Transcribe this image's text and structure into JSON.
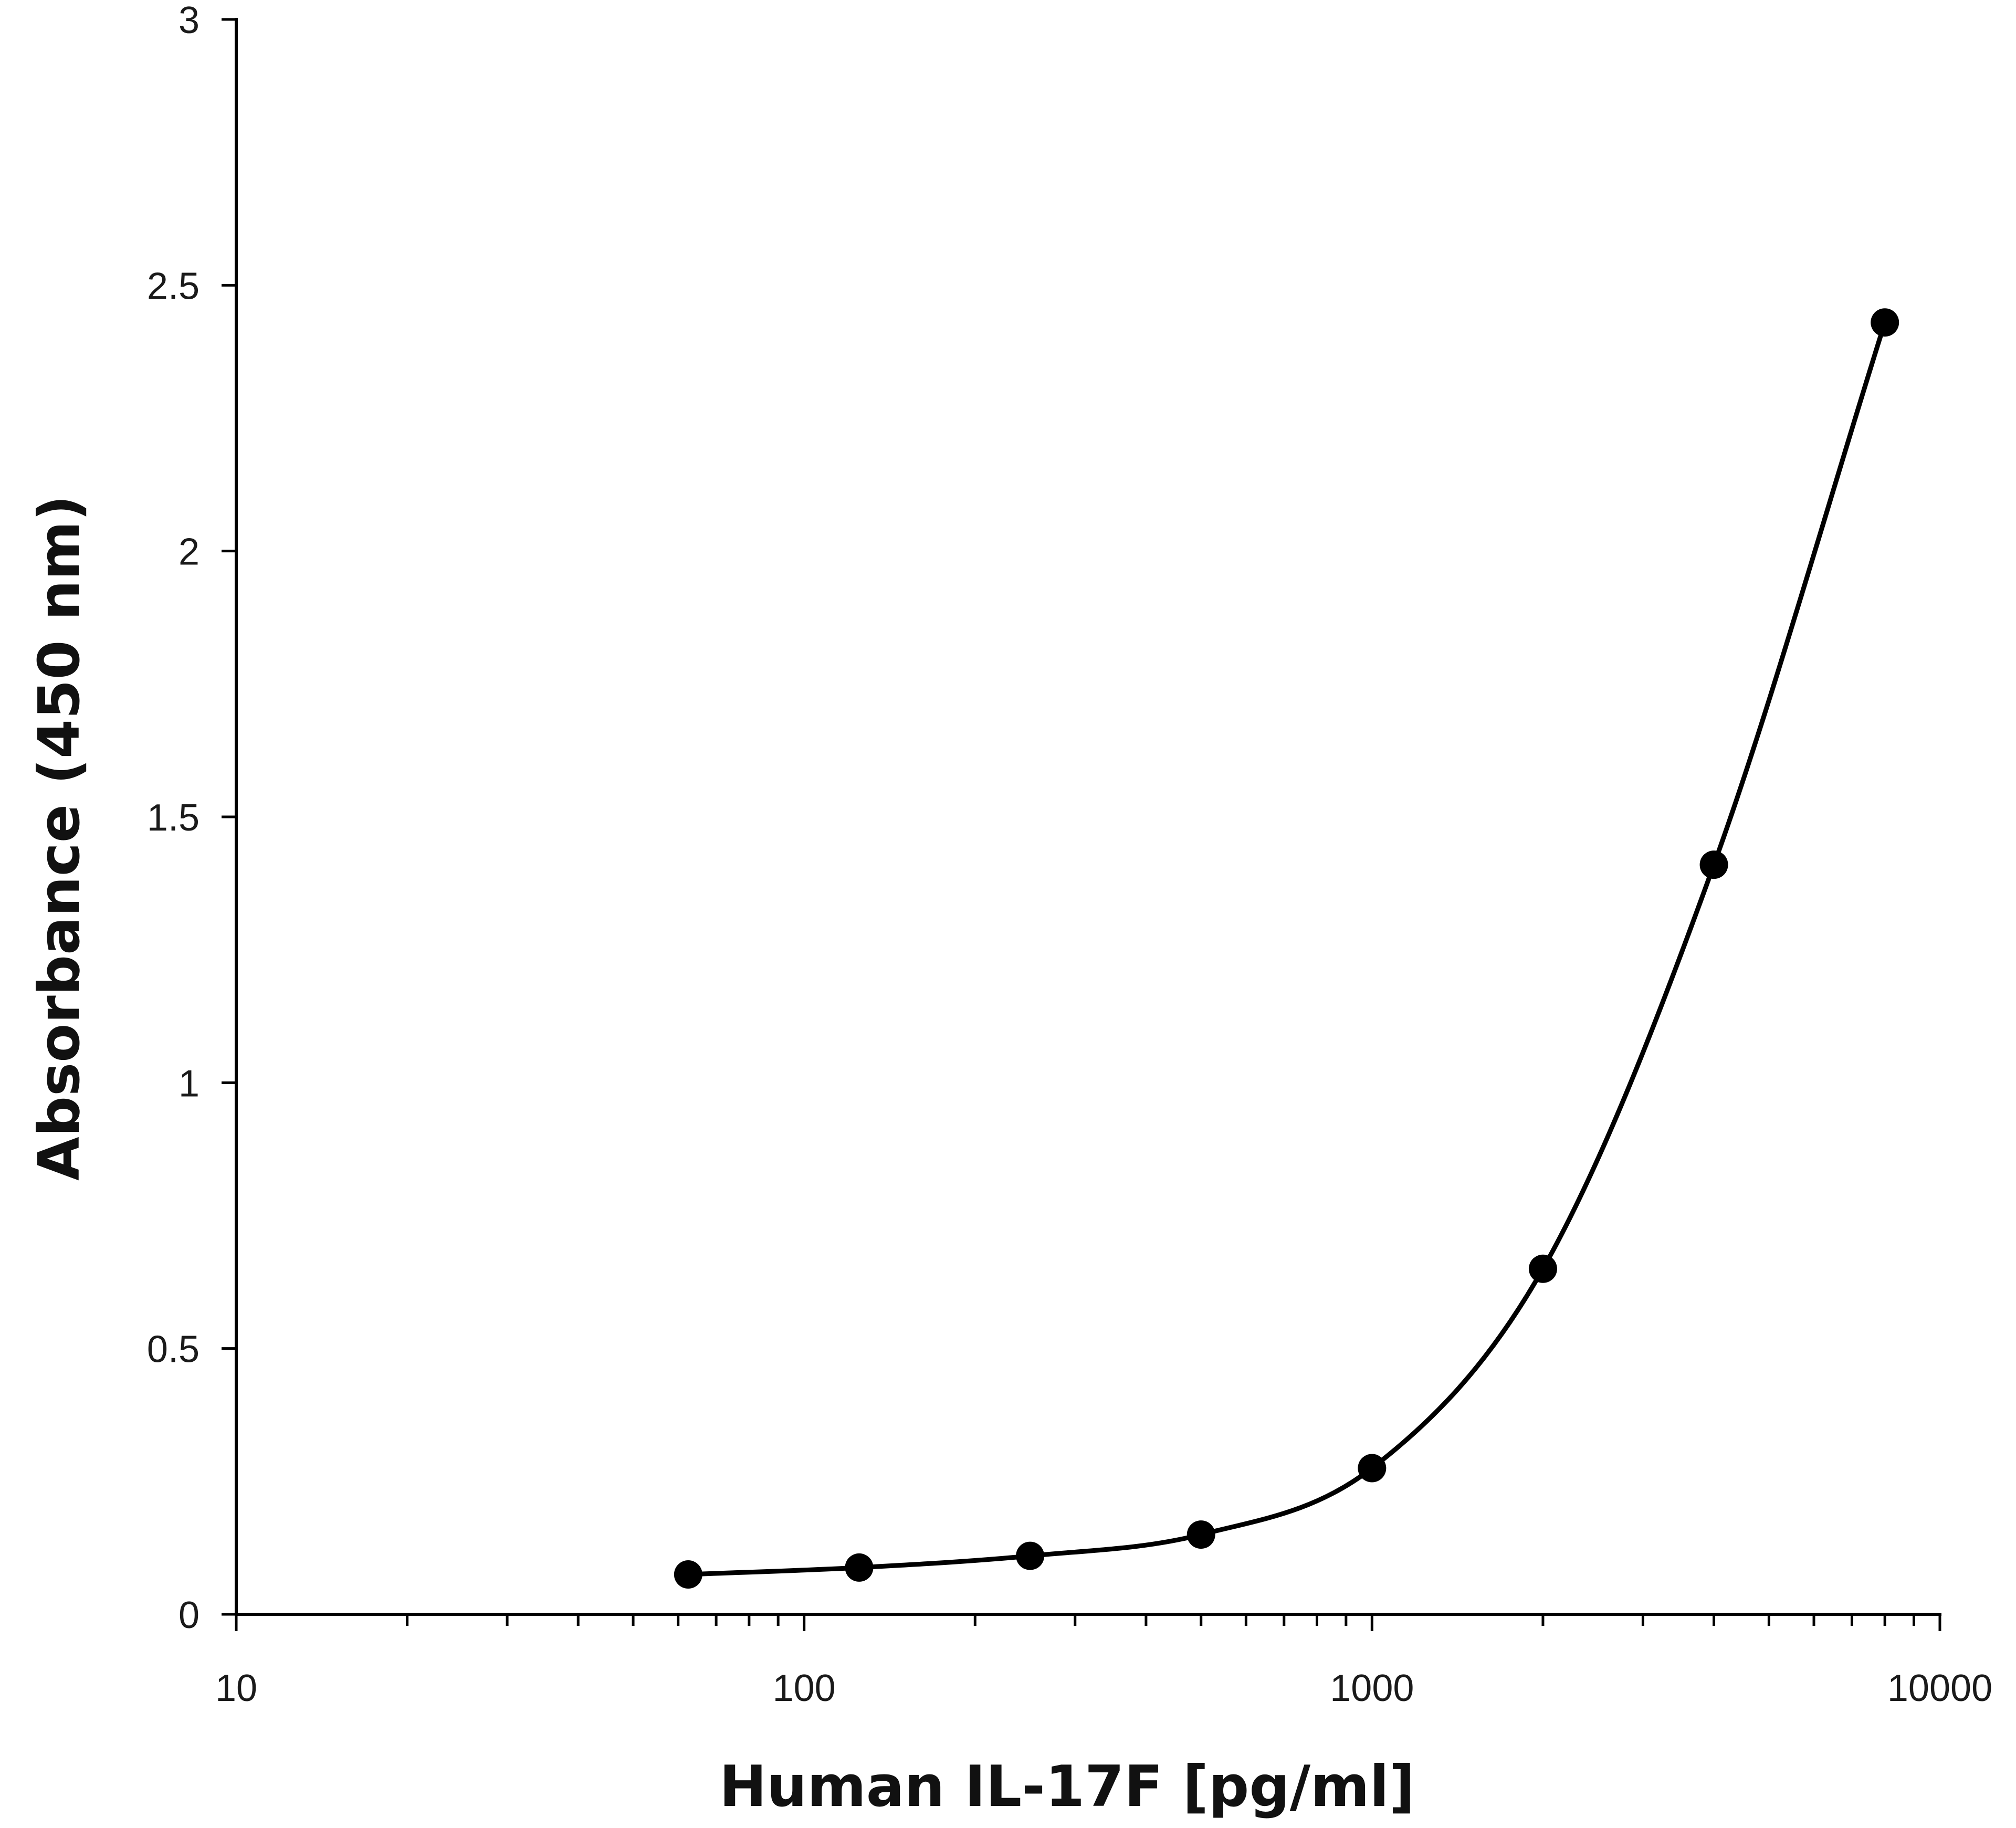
{
  "chart_data": {
    "type": "line",
    "title": "",
    "xlabel": "Human IL-17F [pg/ml]",
    "ylabel": "Absorbance (450 nm)",
    "xscale": "log",
    "xlim": [
      10,
      10000
    ],
    "ylim": [
      0,
      3
    ],
    "x_ticks": [
      10,
      100,
      1000,
      10000
    ],
    "x_tick_labels": [
      "10",
      "100",
      "1000",
      "10000"
    ],
    "y_ticks": [
      0,
      0.5,
      1,
      1.5,
      2,
      2.5,
      3
    ],
    "y_tick_labels": [
      "0",
      "0.5",
      "1",
      "1.5",
      "2",
      "2.5",
      "3"
    ],
    "grid": false,
    "legend": "none",
    "series": [
      {
        "name": "Human IL-17F",
        "x": [
          62.5,
          125,
          250,
          500,
          1000,
          2000,
          4000,
          8000
        ],
        "y": [
          0.075,
          0.088,
          0.11,
          0.15,
          0.275,
          0.65,
          1.41,
          2.43
        ],
        "markers": true,
        "curve": "smooth fit"
      }
    ],
    "colors": {
      "line": "#000000",
      "marker": "#000000",
      "axis": "#000000"
    }
  }
}
